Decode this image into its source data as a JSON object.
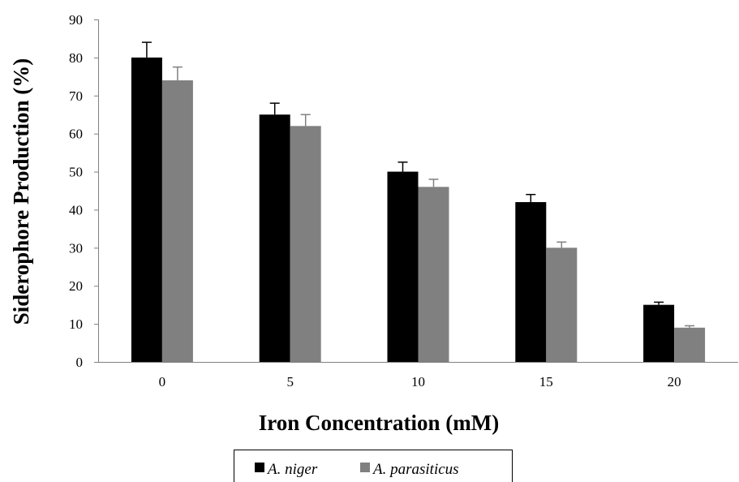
{
  "chart_data": {
    "type": "bar",
    "title": "",
    "xlabel": "Iron Concentration (mM)",
    "ylabel": "Siderophore Production (%)",
    "categories": [
      "0",
      "5",
      "10",
      "15",
      "20"
    ],
    "ylim": [
      0,
      90
    ],
    "yticks": [
      "0",
      "10",
      "20",
      "30",
      "40",
      "50",
      "60",
      "70",
      "80",
      "90"
    ],
    "grid": false,
    "legend_position": "bottom",
    "error_bars": true,
    "series": [
      {
        "name": "A. niger",
        "color": "#000000",
        "values": [
          80,
          65,
          50,
          42,
          15
        ],
        "errors": [
          4,
          3,
          2.5,
          2,
          0.7
        ]
      },
      {
        "name": "A. parasiticus",
        "color": "#808080",
        "values": [
          74,
          62,
          46,
          30,
          9
        ],
        "errors": [
          3.5,
          3,
          2,
          1.5,
          0.5
        ]
      }
    ]
  }
}
